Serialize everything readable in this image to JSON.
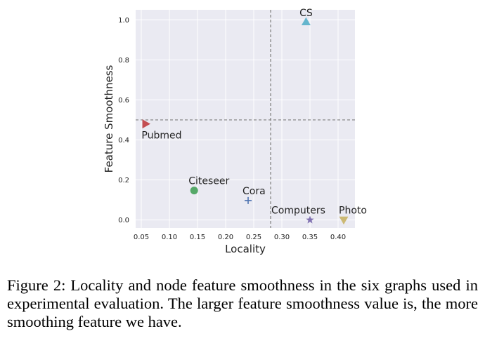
{
  "chart_data": {
    "type": "scatter",
    "xlabel": "Locality",
    "ylabel": "Feature Smoothness",
    "xlim": [
      0.04,
      0.43
    ],
    "ylim": [
      -0.04,
      1.05
    ],
    "x_ticks": [
      0.05,
      0.1,
      0.15,
      0.2,
      0.25,
      0.3,
      0.35,
      0.4
    ],
    "x_tick_labels": [
      "0.05",
      "0.10",
      "0.15",
      "0.20",
      "0.25",
      "0.30",
      "0.35",
      "0.40"
    ],
    "y_ticks": [
      0.0,
      0.2,
      0.4,
      0.6,
      0.8,
      1.0
    ],
    "y_tick_labels": [
      "0.0",
      "0.2",
      "0.4",
      "0.6",
      "0.8",
      "1.0"
    ],
    "grid": true,
    "reference_lines": {
      "x": 0.28,
      "y": 0.5
    },
    "points": [
      {
        "label": "CS",
        "x": 0.343,
        "y": 0.99,
        "marker": "triangle-up",
        "color": "#64b5cd"
      },
      {
        "label": "Pubmed",
        "x": 0.058,
        "y": 0.48,
        "marker": "triangle-right",
        "color": "#c44e52"
      },
      {
        "label": "Citeseer",
        "x": 0.144,
        "y": 0.147,
        "marker": "circle",
        "color": "#55a868"
      },
      {
        "label": "Cora",
        "x": 0.24,
        "y": 0.097,
        "marker": "plus",
        "color": "#4c72b0"
      },
      {
        "label": "Computers",
        "x": 0.35,
        "y": 0.0,
        "marker": "star",
        "color": "#8172b2"
      },
      {
        "label": "Photo",
        "x": 0.41,
        "y": 0.0,
        "marker": "triangle-down",
        "color": "#ccb974"
      }
    ]
  },
  "caption": "Figure 2: Locality and node feature smoothness in the six graphs used in experimental evaluation. The larger feature smoothness value is, the more smoothing feature we have."
}
